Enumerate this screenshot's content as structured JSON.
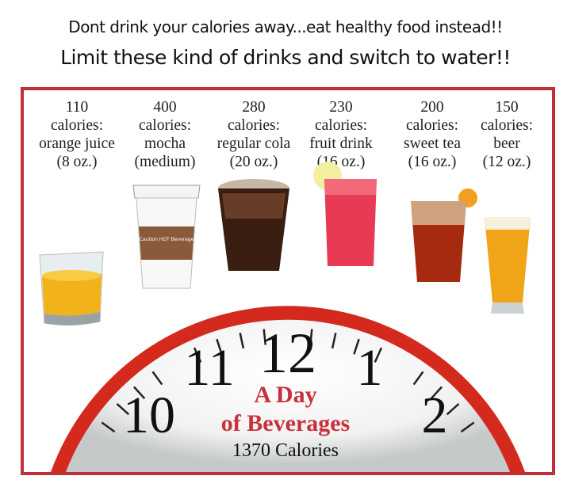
{
  "headline": {
    "line1": "Dont drink your calories away...eat healthy food instead!!",
    "line2": "Limit these kind of drinks and switch to water!!"
  },
  "drinks": [
    {
      "calories": "110",
      "unit": "calories:",
      "name": "orange juice",
      "size": "(8 oz.)"
    },
    {
      "calories": "400",
      "unit": "calories:",
      "name": "mocha",
      "size": "(medium)",
      "cup_text": "Caution HOT Beverage"
    },
    {
      "calories": "280",
      "unit": "calories:",
      "name": "regular cola",
      "size": "(20 oz.)"
    },
    {
      "calories": "230",
      "unit": "calories:",
      "name": "fruit drink",
      "size": "(16 oz.)"
    },
    {
      "calories": "200",
      "unit": "calories:",
      "name": "sweet tea",
      "size": "(16 oz.)"
    },
    {
      "calories": "150",
      "unit": "calories:",
      "name": "beer",
      "size": "(12 oz.)"
    }
  ],
  "clock": {
    "numbers": [
      "10",
      "11",
      "12",
      "1",
      "2"
    ],
    "title_line1": "A Day",
    "title_line2": "of Beverages",
    "total": "1370 Calories"
  },
  "colors": {
    "frame": "#c0303a",
    "clock_ring": "#d42a1e",
    "title": "#c8303a"
  }
}
